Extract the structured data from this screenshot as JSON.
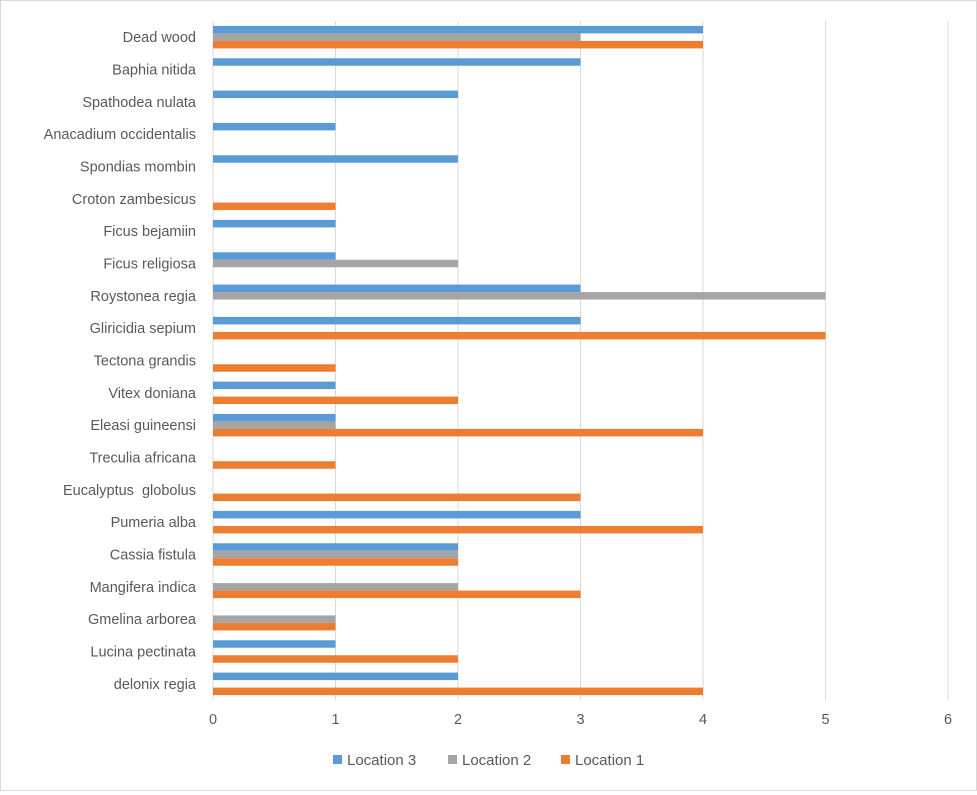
{
  "chart_data": {
    "type": "bar",
    "orientation": "horizontal",
    "categories": [
      "delonix regia",
      "Lucina pectinata",
      "Gmelina arborea",
      "Mangifera indica",
      "Cassia fistula",
      "Pumeria alba",
      "Eucalyptus  globolus",
      "Treculia africana",
      "Eleasi guineensi",
      "Vitex doniana",
      "Tectona grandis",
      "Gliricidia sepium",
      "Roystonea regia",
      "Ficus religiosa",
      "Ficus bejamiin",
      "Croton zambesicus",
      "Spondias mombin",
      "Anacadium occidentalis",
      "Spathodea nulata",
      "Baphia nitida",
      "Dead wood"
    ],
    "series": [
      {
        "name": "Location 1",
        "color": "#ED7D31",
        "values": [
          4,
          2,
          1,
          3,
          2,
          4,
          3,
          1,
          4,
          2,
          1,
          5,
          0,
          0,
          0,
          1,
          0,
          0,
          0,
          0,
          4
        ]
      },
      {
        "name": "Location 2",
        "color": "#A5A5A5",
        "values": [
          0,
          0,
          1,
          2,
          2,
          0,
          0,
          0,
          1,
          0,
          0,
          0,
          5,
          2,
          0,
          0,
          0,
          0,
          0,
          0,
          3
        ]
      },
      {
        "name": "Location 3",
        "color": "#5B9BD5",
        "values": [
          2,
          1,
          0,
          0,
          2,
          3,
          0,
          0,
          1,
          1,
          0,
          3,
          3,
          1,
          1,
          0,
          2,
          1,
          2,
          3,
          4
        ]
      }
    ],
    "x_ticks": [
      "0",
      "1",
      "2",
      "3",
      "4",
      "5",
      "6"
    ],
    "xlim": [
      0,
      6
    ],
    "grid": true,
    "legend_position": "bottom",
    "legend_order": [
      "Location 3",
      "Location 2",
      "Location 1"
    ],
    "title": "",
    "xlabel": "",
    "ylabel": ""
  }
}
